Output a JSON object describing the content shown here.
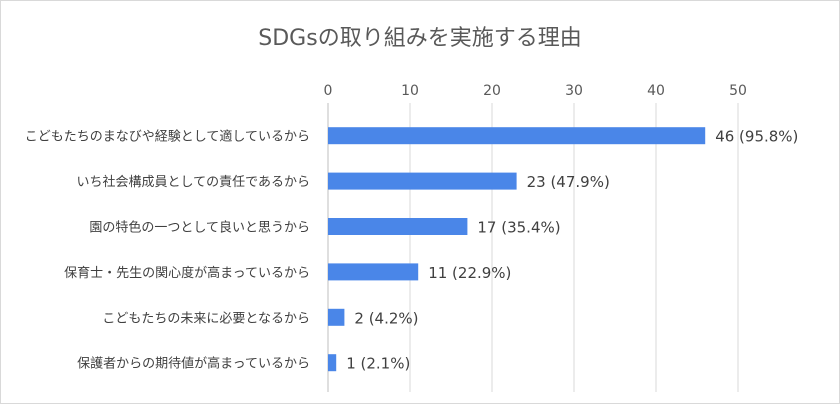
{
  "chart_data": {
    "type": "bar",
    "orientation": "horizontal",
    "title": "SDGsの取り組みを実施する理由",
    "xlim": [
      0,
      50
    ],
    "ticks": [
      0,
      10,
      20,
      30,
      40,
      50
    ],
    "axis_position": "top",
    "grid": true,
    "categories": [
      "こどもたちのまなびや経験として適しているから",
      "いち社会構成員としての責任であるから",
      "園の特色の一つとして良いと思うから",
      "保育士・先生の関心度が高まっているから",
      "こどもたちの未来に必要となるから",
      "保護者からの期待値が高まっているから"
    ],
    "values": [
      46,
      23,
      17,
      11,
      2,
      1
    ],
    "data_labels": [
      "46 (95.8%)",
      "23 (47.9%)",
      "17 (35.4%)",
      "11 (22.9%)",
      "2 (4.2%)",
      "1 (2.1%)"
    ],
    "bar_color": "#4a86e8"
  }
}
